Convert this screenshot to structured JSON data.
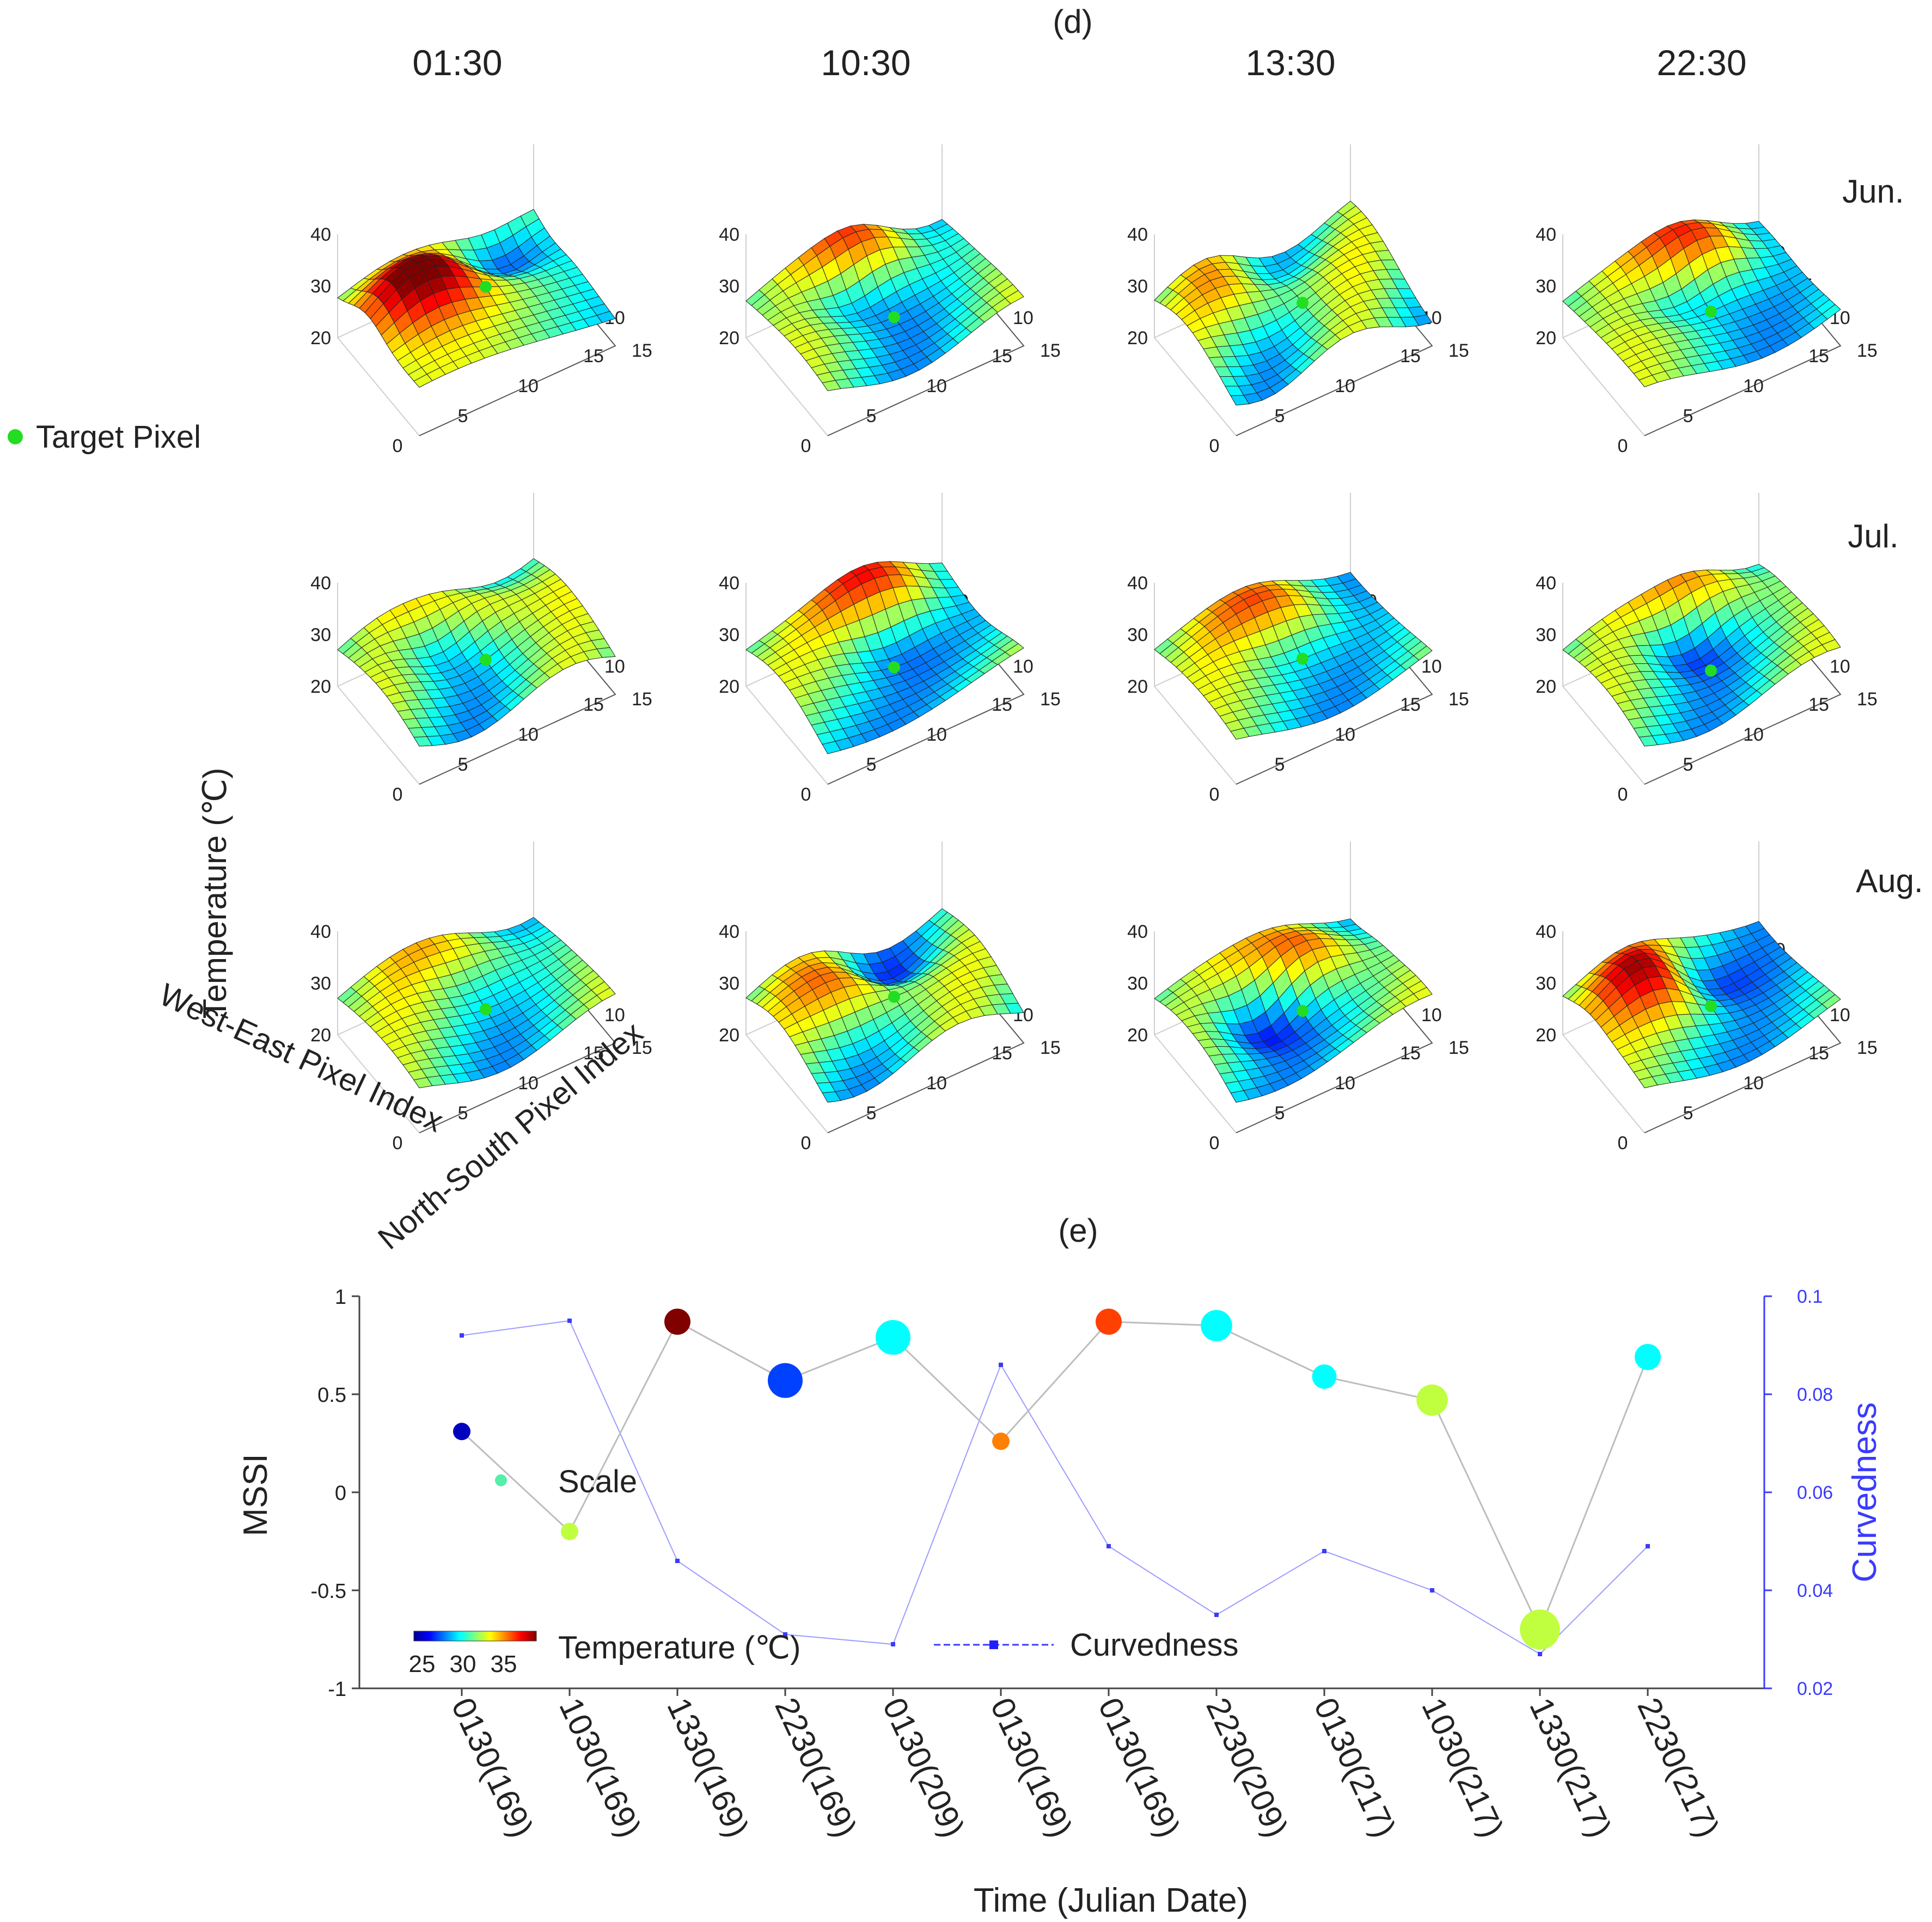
{
  "panel_d": {
    "label": "(d)",
    "legend_target": "Target Pixel",
    "columns": [
      "01:30",
      "10:30",
      "13:30",
      "22:30"
    ],
    "rows": [
      "Jun.",
      "Jul.",
      "Aug."
    ],
    "z_ticks": [
      "20",
      "30",
      "40"
    ],
    "x_ticks": [
      "0",
      "5",
      "10",
      "15"
    ],
    "y_ticks": [
      "0",
      "5",
      "10",
      "15"
    ],
    "zlabel": "Temperature (℃)",
    "xlabel": "West-East Pixel Index",
    "ylabel": "North-South Pixel Index"
  },
  "chart_data": {
    "type": "scatter",
    "label": "(e)",
    "xlabel": "Time (Julian Date)",
    "ylabel": "MSSI",
    "y2label": "Curvedness",
    "categories": [
      "0130(169)",
      "1030(169)",
      "1330(169)",
      "2230(169)",
      "0130(209)",
      "0130(169)",
      "0130(169)",
      "2230(209)",
      "0130(217)",
      "1030(217)",
      "1330(217)",
      "2230(217)"
    ],
    "ylim": [
      -1,
      1
    ],
    "y_ticks": [
      "-1",
      "-0.5",
      "0",
      "0.5",
      "1"
    ],
    "y2lim": [
      0.02,
      0.1
    ],
    "y2_ticks": [
      "0.02",
      "0.04",
      "0.06",
      "0.08",
      "0.1"
    ],
    "series": [
      {
        "name": "MSSI",
        "axis": "left",
        "values": [
          0.31,
          -0.2,
          0.87,
          0.57,
          0.79,
          0.26,
          0.87,
          0.85,
          0.59,
          0.47,
          -0.7,
          0.69
        ],
        "scale": [
          1,
          1,
          1.5,
          2,
          2,
          1,
          1.5,
          1.8,
          1.4,
          1.8,
          2.3,
          1.5
        ],
        "temperature": [
          23,
          31,
          38,
          25,
          28,
          34,
          35,
          28,
          28,
          31,
          31,
          28
        ]
      },
      {
        "name": "Curvedness",
        "axis": "right",
        "values": [
          0.092,
          0.095,
          0.046,
          0.031,
          0.029,
          0.086,
          0.049,
          0.035,
          0.048,
          0.04,
          0.027,
          0.049
        ]
      }
    ],
    "legend": {
      "scale_label": "Scale",
      "temperature_label": "Temperature (℃)",
      "colorbar_ticks": [
        "25",
        "30",
        "35"
      ],
      "curvedness_label": "Curvedness"
    },
    "colors": {
      "curvedness": "#3a3aff",
      "mssi_line": "#bdbdbd",
      "target": "#22dd22"
    }
  }
}
